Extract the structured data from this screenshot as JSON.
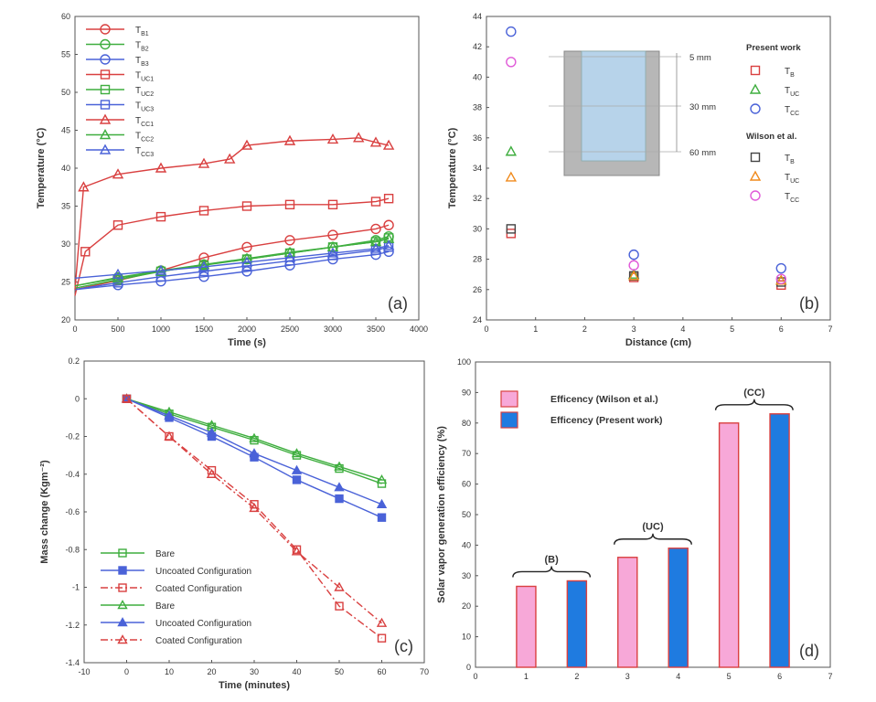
{
  "chart_data": [
    {
      "panel": "(a)",
      "type": "line",
      "xlabel": "Time (s)",
      "ylabel": "Temperature (°C)",
      "xlim": [
        0,
        4000
      ],
      "ylim": [
        20,
        60
      ],
      "xticks": [
        0,
        500,
        1000,
        1500,
        2000,
        2500,
        3000,
        3500,
        4000
      ],
      "yticks": [
        20,
        25,
        30,
        35,
        40,
        45,
        50,
        55,
        60
      ],
      "series": [
        {
          "name": "T_B1",
          "label": "T",
          "sub": "B1",
          "color": "#d94040",
          "marker": "circle",
          "x": [
            0,
            500,
            1000,
            1500,
            2000,
            2500,
            3000,
            3500,
            3650
          ],
          "y": [
            24.0,
            25.2,
            26.5,
            28.2,
            29.6,
            30.5,
            31.2,
            32.0,
            32.5
          ]
        },
        {
          "name": "T_B2",
          "label": "T",
          "sub": "B2",
          "color": "#3fae3f",
          "marker": "circle",
          "x": [
            0,
            500,
            1000,
            1500,
            2000,
            2500,
            3000,
            3500,
            3650
          ],
          "y": [
            24.5,
            25.6,
            26.5,
            27.3,
            28.0,
            28.8,
            29.6,
            30.5,
            31.0
          ]
        },
        {
          "name": "T_B3",
          "label": "T",
          "sub": "B3",
          "color": "#4a62d8",
          "marker": "circle",
          "x": [
            0,
            500,
            1000,
            1500,
            2000,
            2500,
            3000,
            3500,
            3650
          ],
          "y": [
            24.0,
            24.6,
            25.1,
            25.7,
            26.4,
            27.2,
            28.0,
            28.6,
            29.0
          ]
        },
        {
          "name": "T_UC1",
          "label": "T",
          "sub": "UC1",
          "color": "#d94040",
          "marker": "square",
          "x": [
            0,
            120,
            500,
            1000,
            1500,
            2000,
            2500,
            3000,
            3500,
            3650
          ],
          "y": [
            23.2,
            29.0,
            32.5,
            33.6,
            34.4,
            35.0,
            35.2,
            35.2,
            35.6,
            36.0
          ]
        },
        {
          "name": "T_UC2",
          "label": "T",
          "sub": "UC2",
          "color": "#3fae3f",
          "marker": "square",
          "x": [
            0,
            500,
            1000,
            1500,
            2000,
            2500,
            3000,
            3500,
            3650
          ],
          "y": [
            24.2,
            25.3,
            26.4,
            27.2,
            28.0,
            28.8,
            29.6,
            30.3,
            30.8
          ]
        },
        {
          "name": "T_UC3",
          "label": "T",
          "sub": "UC3",
          "color": "#4a62d8",
          "marker": "square",
          "x": [
            0,
            500,
            1000,
            1500,
            2000,
            2500,
            3000,
            3500,
            3650
          ],
          "y": [
            24.0,
            24.9,
            25.7,
            26.4,
            27.1,
            27.8,
            28.5,
            29.2,
            29.6
          ]
        },
        {
          "name": "T_CC1",
          "label": "T",
          "sub": "CC1",
          "color": "#d94040",
          "marker": "triangle",
          "x": [
            0,
            100,
            500,
            1000,
            1500,
            1800,
            2000,
            2500,
            3000,
            3300,
            3500,
            3650
          ],
          "y": [
            24.0,
            37.5,
            39.2,
            40.0,
            40.6,
            41.2,
            43.0,
            43.6,
            43.8,
            44.0,
            43.4,
            43.0
          ]
        },
        {
          "name": "T_CC2",
          "label": "T",
          "sub": "CC2",
          "color": "#3fae3f",
          "marker": "triangle",
          "x": [
            0,
            500,
            1000,
            1500,
            2000,
            2500,
            3000,
            3500,
            3650
          ],
          "y": [
            24.5,
            25.5,
            26.4,
            27.3,
            28.1,
            28.9,
            29.6,
            30.3,
            30.7
          ]
        },
        {
          "name": "T_CC3",
          "label": "T",
          "sub": "CC3",
          "color": "#4a62d8",
          "marker": "triangle",
          "x": [
            0,
            500,
            1000,
            1500,
            2000,
            2500,
            3000,
            3500,
            3650
          ],
          "y": [
            25.5,
            26.0,
            26.5,
            27.0,
            27.6,
            28.2,
            28.8,
            29.4,
            29.8
          ]
        }
      ],
      "annotation": "(a)"
    },
    {
      "panel": "(b)",
      "type": "scatter",
      "xlabel": "Distance (cm)",
      "ylabel": "Temperature (°C)",
      "xlim": [
        0,
        7
      ],
      "ylim": [
        24,
        44
      ],
      "xticks": [
        0,
        1,
        2,
        3,
        4,
        5,
        6,
        7
      ],
      "yticks": [
        24,
        26,
        28,
        30,
        32,
        34,
        36,
        38,
        40,
        42,
        44
      ],
      "legend_groups": [
        "Present work",
        "Wilson et al."
      ],
      "series": [
        {
          "group": "Present work",
          "label": "T",
          "sub": "B",
          "color": "#d94040",
          "marker": "square",
          "x": [
            0.5,
            3,
            6
          ],
          "y": [
            29.7,
            26.8,
            26.3
          ]
        },
        {
          "group": "Present work",
          "label": "T",
          "sub": "UC",
          "color": "#3fae3f",
          "marker": "triangle",
          "x": [
            0.5,
            3,
            6
          ],
          "y": [
            35.1,
            27.0,
            26.6
          ]
        },
        {
          "group": "Present work",
          "label": "T",
          "sub": "CC",
          "color": "#4a62d8",
          "marker": "circle",
          "x": [
            0.5,
            3,
            6
          ],
          "y": [
            43.0,
            28.3,
            27.4
          ]
        },
        {
          "group": "Wilson et al.",
          "label": "T",
          "sub": "B",
          "color": "#444444",
          "marker": "square",
          "x": [
            0.5,
            3,
            6
          ],
          "y": [
            30.0,
            26.9,
            26.5
          ]
        },
        {
          "group": "Wilson et al.",
          "label": "T",
          "sub": "UC",
          "color": "#f08a1c",
          "marker": "triangle",
          "x": [
            0.5,
            3,
            6
          ],
          "y": [
            33.4,
            26.9,
            26.6
          ]
        },
        {
          "group": "Wilson et al.",
          "label": "T",
          "sub": "CC",
          "color": "#e05ad8",
          "marker": "circle",
          "x": [
            0.5,
            3,
            6
          ],
          "y": [
            41.0,
            27.6,
            26.7
          ]
        }
      ],
      "inset_labels": [
        "5 mm",
        "30 mm",
        "60 mm"
      ],
      "annotation": "(b)"
    },
    {
      "panel": "(c)",
      "type": "line",
      "xlabel": "Time (minutes)",
      "ylabel": "Mass change (Kgm⁻²)",
      "xlim": [
        -10,
        70
      ],
      "ylim": [
        -1.4,
        0.2
      ],
      "xticks": [
        -10,
        0,
        10,
        20,
        30,
        40,
        50,
        60,
        70
      ],
      "yticks": [
        0.2,
        0,
        -0.2,
        -0.4,
        -0.6,
        -0.8,
        -1,
        -1.2,
        -1.4
      ],
      "series": [
        {
          "name": "Bare",
          "color": "#3fae3f",
          "marker": "square",
          "dash": "solid",
          "x": [
            0,
            10,
            20,
            30,
            40,
            50,
            60
          ],
          "y": [
            0,
            -0.08,
            -0.15,
            -0.22,
            -0.3,
            -0.37,
            -0.45
          ]
        },
        {
          "name": "Uncoated Configuration",
          "color": "#4a62d8",
          "marker": "square-filled",
          "dash": "solid",
          "x": [
            0,
            10,
            20,
            30,
            40,
            50,
            60
          ],
          "y": [
            0,
            -0.1,
            -0.2,
            -0.31,
            -0.43,
            -0.53,
            -0.63
          ]
        },
        {
          "name": "Coated Configuration",
          "color": "#d94040",
          "marker": "square",
          "dash": "dashdot",
          "x": [
            0,
            10,
            20,
            30,
            40,
            50,
            60
          ],
          "y": [
            0,
            -0.2,
            -0.38,
            -0.56,
            -0.8,
            -1.1,
            -1.27
          ]
        },
        {
          "name": "Bare",
          "color": "#3fae3f",
          "marker": "triangle",
          "dash": "solid",
          "x": [
            0,
            10,
            20,
            30,
            40,
            50,
            60
          ],
          "y": [
            0,
            -0.07,
            -0.14,
            -0.21,
            -0.29,
            -0.36,
            -0.43
          ]
        },
        {
          "name": "Uncoated Configuration",
          "color": "#4a62d8",
          "marker": "triangle-filled",
          "dash": "solid",
          "x": [
            0,
            10,
            20,
            30,
            40,
            50,
            60
          ],
          "y": [
            0,
            -0.09,
            -0.18,
            -0.29,
            -0.38,
            -0.47,
            -0.56
          ]
        },
        {
          "name": "Coated Configuration",
          "color": "#d94040",
          "marker": "triangle",
          "dash": "dashdot",
          "x": [
            0,
            10,
            20,
            30,
            40,
            50,
            60
          ],
          "y": [
            0,
            -0.2,
            -0.4,
            -0.58,
            -0.81,
            -1.0,
            -1.19
          ]
        }
      ],
      "annotation": "(c)"
    },
    {
      "panel": "(d)",
      "type": "bar",
      "xlabel": "",
      "ylabel": "Solar vapor generation efficiency (%)",
      "xlim": [
        0,
        7
      ],
      "ylim": [
        0,
        100
      ],
      "xticks": [
        0,
        1,
        2,
        3,
        4,
        5,
        6,
        7
      ],
      "yticks": [
        0,
        10,
        20,
        30,
        40,
        50,
        60,
        70,
        80,
        90,
        100
      ],
      "bars": [
        {
          "x": 1,
          "value": 26.5,
          "series": "Efficency (Wilson et al.)"
        },
        {
          "x": 2,
          "value": 28.3,
          "series": "Efficency (Present work)"
        },
        {
          "x": 3,
          "value": 36.0,
          "series": "Efficency (Wilson et al.)"
        },
        {
          "x": 4,
          "value": 39.0,
          "series": "Efficency (Present work)"
        },
        {
          "x": 5,
          "value": 80.0,
          "series": "Efficency (Wilson et al.)"
        },
        {
          "x": 6,
          "value": 83.0,
          "series": "Efficency (Present work)"
        }
      ],
      "series": [
        {
          "name": "Efficency (Wilson et al.)",
          "fill": "#f7a8d8",
          "stroke": "#d94040"
        },
        {
          "name": "Efficency (Present work)",
          "fill": "#1f7be0",
          "stroke": "#d94040"
        }
      ],
      "groups": [
        {
          "label": "(B)",
          "from": 1,
          "to": 2,
          "top": 28.3
        },
        {
          "label": "(UC)",
          "from": 3,
          "to": 4,
          "top": 39.0
        },
        {
          "label": "(CC)",
          "from": 5,
          "to": 6,
          "top": 83.0
        }
      ],
      "annotation": "(d)"
    }
  ]
}
